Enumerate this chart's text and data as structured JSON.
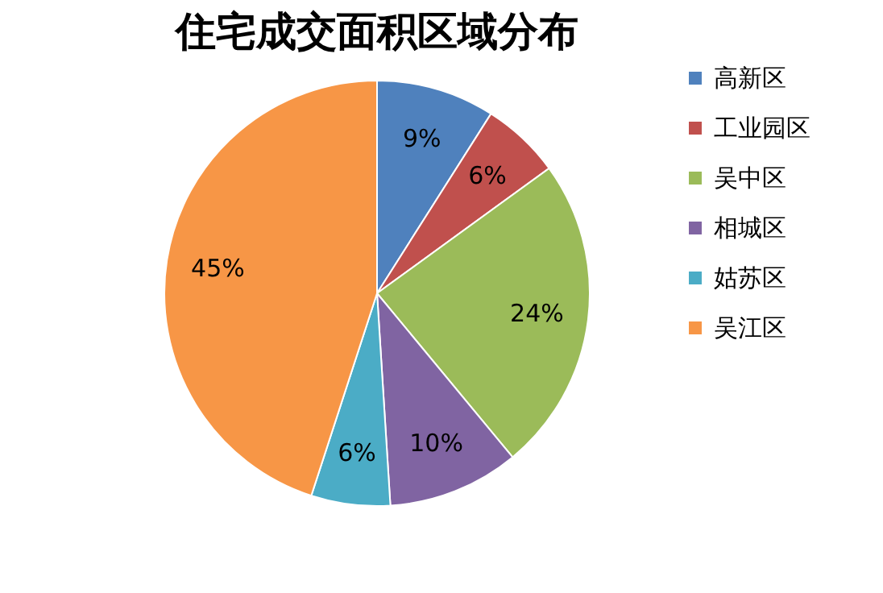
{
  "chart_data": {
    "type": "pie",
    "title": "住宅成交面积区域分布",
    "categories": [
      "高新区",
      "工业园区",
      "吴中区",
      "相城区",
      "姑苏区",
      "吴江区"
    ],
    "values": [
      9,
      6,
      24,
      10,
      6,
      45
    ],
    "colors": [
      "#4f81bd",
      "#c0504d",
      "#9bbb59",
      "#8064a2",
      "#4bacc6",
      "#f79646"
    ],
    "value_labels": [
      "9%",
      "6%",
      "24%",
      "10%",
      "6%",
      "45%"
    ],
    "legend": "right"
  }
}
